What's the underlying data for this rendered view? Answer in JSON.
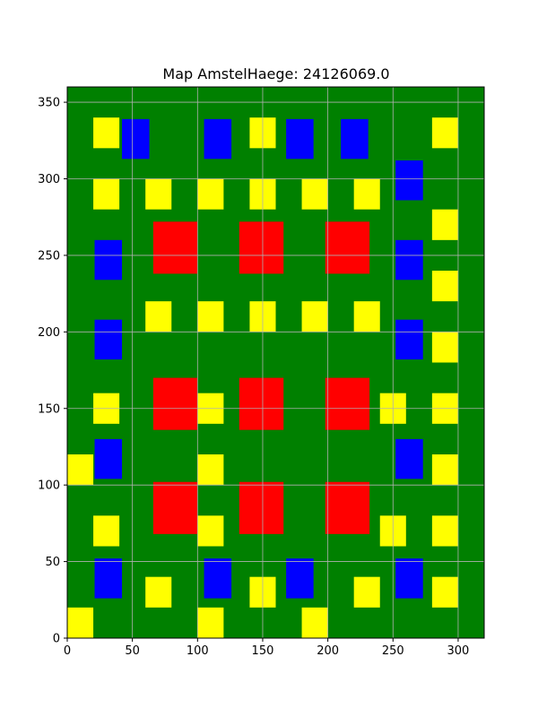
{
  "chart_data": {
    "type": "map",
    "title": "Map AmstelHaege: 24126069.0",
    "xlabel": "",
    "ylabel": "",
    "xlim": [
      0,
      320
    ],
    "ylim": [
      0,
      360
    ],
    "xticks": [
      0,
      50,
      100,
      150,
      200,
      250,
      300
    ],
    "yticks": [
      0,
      50,
      100,
      150,
      200,
      250,
      300,
      350
    ],
    "grid": true,
    "colors": {
      "background": "#008000",
      "red": "#ff0000",
      "blue": "#0000ff",
      "yellow": "#ffff00",
      "grid": "#b0b0b0"
    },
    "rectangles": [
      {
        "x": 66,
        "y": 238,
        "w": 34,
        "h": 34,
        "color": "red"
      },
      {
        "x": 132,
        "y": 238,
        "w": 34,
        "h": 34,
        "color": "red"
      },
      {
        "x": 198,
        "y": 238,
        "w": 34,
        "h": 34,
        "color": "red"
      },
      {
        "x": 66,
        "y": 136,
        "w": 34,
        "h": 34,
        "color": "red"
      },
      {
        "x": 132,
        "y": 136,
        "w": 34,
        "h": 34,
        "color": "red"
      },
      {
        "x": 198,
        "y": 136,
        "w": 34,
        "h": 34,
        "color": "red"
      },
      {
        "x": 66,
        "y": 68,
        "w": 34,
        "h": 34,
        "color": "red"
      },
      {
        "x": 132,
        "y": 68,
        "w": 34,
        "h": 34,
        "color": "red"
      },
      {
        "x": 198,
        "y": 68,
        "w": 34,
        "h": 34,
        "color": "red"
      },
      {
        "x": 42,
        "y": 313,
        "w": 21,
        "h": 26,
        "color": "blue"
      },
      {
        "x": 105,
        "y": 313,
        "w": 21,
        "h": 26,
        "color": "blue"
      },
      {
        "x": 168,
        "y": 313,
        "w": 21,
        "h": 26,
        "color": "blue"
      },
      {
        "x": 210,
        "y": 313,
        "w": 21,
        "h": 26,
        "color": "blue"
      },
      {
        "x": 252,
        "y": 286,
        "w": 21,
        "h": 26,
        "color": "blue"
      },
      {
        "x": 21,
        "y": 234,
        "w": 21,
        "h": 26,
        "color": "blue"
      },
      {
        "x": 252,
        "y": 234,
        "w": 21,
        "h": 26,
        "color": "blue"
      },
      {
        "x": 21,
        "y": 182,
        "w": 21,
        "h": 26,
        "color": "blue"
      },
      {
        "x": 252,
        "y": 182,
        "w": 21,
        "h": 26,
        "color": "blue"
      },
      {
        "x": 21,
        "y": 104,
        "w": 21,
        "h": 26,
        "color": "blue"
      },
      {
        "x": 252,
        "y": 104,
        "w": 21,
        "h": 26,
        "color": "blue"
      },
      {
        "x": 21,
        "y": 26,
        "w": 21,
        "h": 26,
        "color": "blue"
      },
      {
        "x": 105,
        "y": 26,
        "w": 21,
        "h": 26,
        "color": "blue"
      },
      {
        "x": 168,
        "y": 26,
        "w": 21,
        "h": 26,
        "color": "blue"
      },
      {
        "x": 252,
        "y": 26,
        "w": 21,
        "h": 26,
        "color": "blue"
      },
      {
        "x": 20,
        "y": 320,
        "w": 20,
        "h": 20,
        "color": "yellow"
      },
      {
        "x": 140,
        "y": 320,
        "w": 20,
        "h": 20,
        "color": "yellow"
      },
      {
        "x": 280,
        "y": 320,
        "w": 20,
        "h": 20,
        "color": "yellow"
      },
      {
        "x": 20,
        "y": 280,
        "w": 20,
        "h": 20,
        "color": "yellow"
      },
      {
        "x": 60,
        "y": 280,
        "w": 20,
        "h": 20,
        "color": "yellow"
      },
      {
        "x": 100,
        "y": 280,
        "w": 20,
        "h": 20,
        "color": "yellow"
      },
      {
        "x": 140,
        "y": 280,
        "w": 20,
        "h": 20,
        "color": "yellow"
      },
      {
        "x": 180,
        "y": 280,
        "w": 20,
        "h": 20,
        "color": "yellow"
      },
      {
        "x": 220,
        "y": 280,
        "w": 20,
        "h": 20,
        "color": "yellow"
      },
      {
        "x": 280,
        "y": 260,
        "w": 20,
        "h": 20,
        "color": "yellow"
      },
      {
        "x": 280,
        "y": 220,
        "w": 20,
        "h": 20,
        "color": "yellow"
      },
      {
        "x": 60,
        "y": 200,
        "w": 20,
        "h": 20,
        "color": "yellow"
      },
      {
        "x": 100,
        "y": 200,
        "w": 20,
        "h": 20,
        "color": "yellow"
      },
      {
        "x": 140,
        "y": 200,
        "w": 20,
        "h": 20,
        "color": "yellow"
      },
      {
        "x": 180,
        "y": 200,
        "w": 20,
        "h": 20,
        "color": "yellow"
      },
      {
        "x": 220,
        "y": 200,
        "w": 20,
        "h": 20,
        "color": "yellow"
      },
      {
        "x": 280,
        "y": 180,
        "w": 20,
        "h": 20,
        "color": "yellow"
      },
      {
        "x": 20,
        "y": 140,
        "w": 20,
        "h": 20,
        "color": "yellow"
      },
      {
        "x": 100,
        "y": 140,
        "w": 20,
        "h": 20,
        "color": "yellow"
      },
      {
        "x": 240,
        "y": 140,
        "w": 20,
        "h": 20,
        "color": "yellow"
      },
      {
        "x": 280,
        "y": 140,
        "w": 20,
        "h": 20,
        "color": "yellow"
      },
      {
        "x": 0,
        "y": 100,
        "w": 20,
        "h": 20,
        "color": "yellow"
      },
      {
        "x": 100,
        "y": 100,
        "w": 20,
        "h": 20,
        "color": "yellow"
      },
      {
        "x": 280,
        "y": 100,
        "w": 20,
        "h": 20,
        "color": "yellow"
      },
      {
        "x": 20,
        "y": 60,
        "w": 20,
        "h": 20,
        "color": "yellow"
      },
      {
        "x": 100,
        "y": 60,
        "w": 20,
        "h": 20,
        "color": "yellow"
      },
      {
        "x": 240,
        "y": 60,
        "w": 20,
        "h": 20,
        "color": "yellow"
      },
      {
        "x": 280,
        "y": 60,
        "w": 20,
        "h": 20,
        "color": "yellow"
      },
      {
        "x": 60,
        "y": 20,
        "w": 20,
        "h": 20,
        "color": "yellow"
      },
      {
        "x": 140,
        "y": 20,
        "w": 20,
        "h": 20,
        "color": "yellow"
      },
      {
        "x": 220,
        "y": 20,
        "w": 20,
        "h": 20,
        "color": "yellow"
      },
      {
        "x": 280,
        "y": 20,
        "w": 20,
        "h": 20,
        "color": "yellow"
      },
      {
        "x": 0,
        "y": 0,
        "w": 20,
        "h": 20,
        "color": "yellow"
      },
      {
        "x": 100,
        "y": 0,
        "w": 20,
        "h": 20,
        "color": "yellow"
      },
      {
        "x": 180,
        "y": 0,
        "w": 20,
        "h": 20,
        "color": "yellow"
      }
    ]
  }
}
